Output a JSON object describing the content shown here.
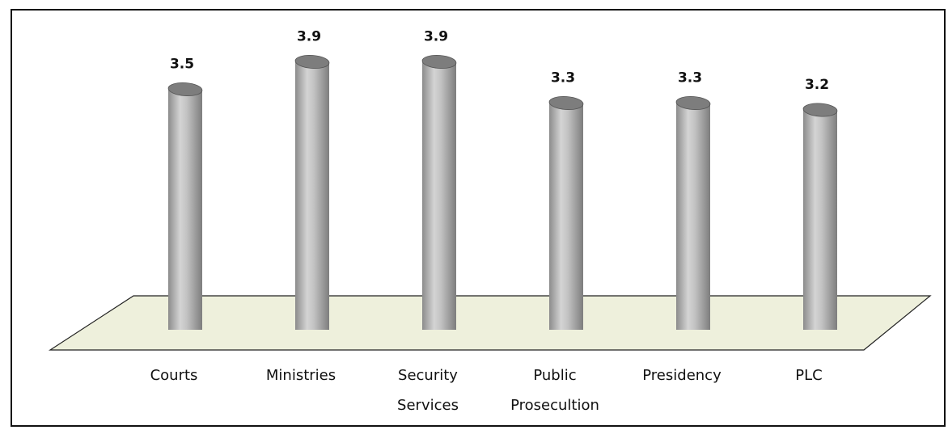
{
  "chart_data": {
    "type": "bar",
    "categories": [
      "Courts",
      "Ministries",
      "Security Services",
      "Public Prosecultion",
      "Presidency",
      "PLC"
    ],
    "values": [
      3.5,
      3.9,
      3.9,
      3.3,
      3.3,
      3.2
    ],
    "color": "#a8a8a8"
  }
}
